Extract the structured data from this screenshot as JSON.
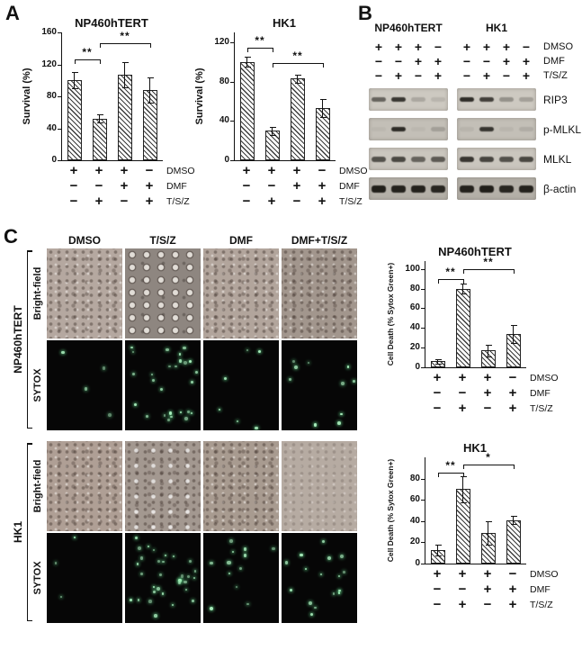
{
  "panels": {
    "a": "A",
    "b": "B",
    "c": "C"
  },
  "chart_data": [
    {
      "type": "bar",
      "panel": "A",
      "title": "NP460hTERT",
      "ylabel": "Survival (%)",
      "yticks": [
        0,
        40,
        80,
        120,
        160
      ],
      "yscale_max": 160,
      "values": [
        100,
        52,
        107,
        88
      ],
      "errors": [
        10,
        5,
        16,
        16
      ],
      "significance": [
        {
          "from": 0,
          "to": 1,
          "label": "**",
          "y": 126
        },
        {
          "from": 1,
          "to": 3,
          "label": "**",
          "y": 147
        }
      ],
      "treatment_matrix": [
        {
          "label": "DMSO",
          "values": [
            "+",
            "+",
            "+",
            "−"
          ]
        },
        {
          "label": "DMF",
          "values": [
            "−",
            "−",
            "+",
            "+"
          ]
        },
        {
          "label": "T/S/Z",
          "values": [
            "−",
            "+",
            "−",
            "+"
          ]
        }
      ]
    },
    {
      "type": "bar",
      "panel": "A",
      "title": "HK1",
      "ylabel": "Survival (%)",
      "yticks": [
        0,
        40,
        80,
        120
      ],
      "yscale_max": 130,
      "values": [
        100,
        30,
        83,
        53
      ],
      "errors": [
        5,
        4,
        4,
        9
      ],
      "significance": [
        {
          "from": 0,
          "to": 1,
          "label": "**",
          "y": 114
        },
        {
          "from": 1,
          "to": 3,
          "label": "**",
          "y": 99
        }
      ],
      "treatment_matrix": [
        {
          "label": "DMSO",
          "values": [
            "+",
            "+",
            "+",
            "−"
          ]
        },
        {
          "label": "DMF",
          "values": [
            "−",
            "−",
            "+",
            "+"
          ]
        },
        {
          "label": "T/S/Z",
          "values": [
            "−",
            "+",
            "−",
            "+"
          ]
        }
      ]
    },
    {
      "type": "bar",
      "panel": "C",
      "title": "NP460hTERT",
      "ylabel": "Cell Death (% Sytox Green+)",
      "yticks": [
        0,
        20,
        40,
        60,
        80,
        100
      ],
      "yscale_max": 108,
      "values": [
        6,
        80,
        17,
        34
      ],
      "errors": [
        2,
        5,
        6,
        9
      ],
      "significance": [
        {
          "from": 0,
          "to": 1,
          "label": "**",
          "y": 90
        },
        {
          "from": 1,
          "to": 3,
          "label": "**",
          "y": 100
        }
      ],
      "treatment_matrix": [
        {
          "label": "DMSO",
          "values": [
            "+",
            "+",
            "+",
            "−"
          ]
        },
        {
          "label": "DMF",
          "values": [
            "−",
            "−",
            "+",
            "+"
          ]
        },
        {
          "label": "T/S/Z",
          "values": [
            "−",
            "+",
            "−",
            "+"
          ]
        }
      ]
    },
    {
      "type": "bar",
      "panel": "C",
      "title": "HK1",
      "ylabel": "Cell Death (% Sytox Green+)",
      "yticks": [
        0,
        20,
        40,
        60,
        80
      ],
      "yscale_max": 100,
      "values": [
        13,
        70,
        29,
        41
      ],
      "errors": [
        5,
        12,
        11,
        4
      ],
      "significance": [
        {
          "from": 0,
          "to": 1,
          "label": "**",
          "y": 86
        },
        {
          "from": 1,
          "to": 3,
          "label": "*",
          "y": 93
        }
      ],
      "treatment_matrix": [
        {
          "label": "DMSO",
          "values": [
            "+",
            "+",
            "+",
            "−"
          ]
        },
        {
          "label": "DMF",
          "values": [
            "−",
            "−",
            "+",
            "+"
          ]
        },
        {
          "label": "T/S/Z",
          "values": [
            "−",
            "+",
            "−",
            "+"
          ]
        }
      ]
    }
  ],
  "blots": {
    "groups": [
      "NP460hTERT",
      "HK1"
    ],
    "treatment_rows": [
      {
        "label": "DMSO",
        "np": [
          "+",
          "+",
          "+",
          "−"
        ],
        "hk": [
          "+",
          "+",
          "+",
          "−"
        ]
      },
      {
        "label": "DMF",
        "np": [
          "−",
          "−",
          "+",
          "+"
        ],
        "hk": [
          "−",
          "−",
          "+",
          "+"
        ]
      },
      {
        "label": "T/S/Z",
        "np": [
          "−",
          "+",
          "−",
          "+"
        ],
        "hk": [
          "−",
          "+",
          "−",
          "+"
        ]
      }
    ],
    "rows": [
      {
        "label": "RIP3",
        "bg": "#cdc9c1",
        "band_h": 5,
        "np": [
          0.55,
          0.8,
          0.18,
          0.1
        ],
        "hk": [
          0.85,
          0.75,
          0.3,
          0.22
        ]
      },
      {
        "label": "p-MLKL",
        "bg": "#c3bfb7",
        "band_h": 5,
        "np": [
          0.04,
          0.85,
          0.04,
          0.18
        ],
        "hk": [
          0.06,
          0.8,
          0.05,
          0.1
        ]
      },
      {
        "label": "MLKL",
        "bg": "#cac6be",
        "band_h": 6,
        "np": [
          0.65,
          0.7,
          0.55,
          0.6
        ],
        "hk": [
          0.8,
          0.72,
          0.65,
          0.7
        ]
      },
      {
        "label": "β-actin",
        "bg": "#b4b0a8",
        "band_h": 8,
        "np": [
          0.92,
          0.9,
          0.9,
          0.88
        ],
        "hk": [
          0.9,
          0.92,
          0.88,
          0.9
        ]
      }
    ]
  },
  "microscopy": {
    "col_headers": [
      "DMSO",
      "T/S/Z",
      "DMF",
      "DMF+T/S/Z"
    ],
    "groups": [
      {
        "cell_line": "NP460hTERT",
        "rows": [
          "Bright-field",
          "SYTOX"
        ]
      },
      {
        "cell_line": "HK1",
        "rows": [
          "Bright-field",
          "SYTOX"
        ]
      }
    ],
    "rows": [
      {
        "type": "bf",
        "cells": [
          {
            "base": "#b5a8a0",
            "style": "dense"
          },
          {
            "base": "#8e8680",
            "style": "sparse"
          },
          {
            "base": "#b2a59c",
            "style": "dense"
          },
          {
            "base": "#a2968d",
            "style": "dense"
          }
        ]
      },
      {
        "type": "sytox",
        "cells": [
          {
            "dots": 4
          },
          {
            "dots": 26
          },
          {
            "dots": 6
          },
          {
            "dots": 10
          }
        ]
      },
      {
        "type": "bf",
        "cells": [
          {
            "base": "#af9f95",
            "style": "dense"
          },
          {
            "base": "#a39890",
            "style": "spots"
          },
          {
            "base": "#a89b90",
            "style": "dense"
          },
          {
            "base": "#b6aba2",
            "style": "hazy"
          }
        ]
      },
      {
        "type": "sytox",
        "cells": [
          {
            "dots": 3
          },
          {
            "dots": 32
          },
          {
            "dots": 12
          },
          {
            "dots": 16
          }
        ]
      }
    ]
  }
}
